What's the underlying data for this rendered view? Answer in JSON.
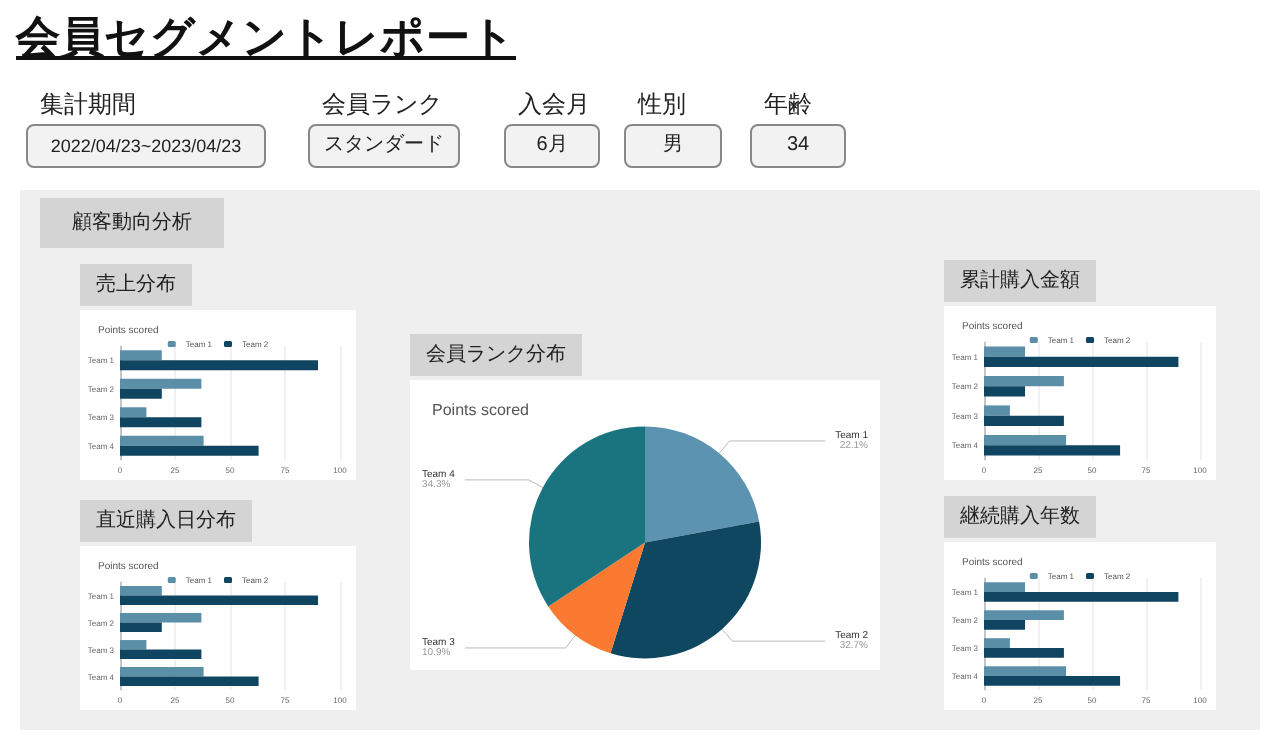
{
  "chart_data": [
    {
      "type": "other",
      "title": "会員セグメントレポート",
      "annotations": [
        "集計期間",
        "2022/04/23~2023/04/23",
        "会員ランク",
        "スタンダード",
        "入会月",
        "6月",
        "性別",
        "男",
        "年齢",
        "34",
        "顧客動向分析"
      ]
    },
    {
      "type": "bar",
      "orientation": "horizontal",
      "title": "売上分布",
      "subtitle": "Points scored",
      "categories": [
        "Team 1",
        "Team 2",
        "Team 3",
        "Team 4"
      ],
      "series": [
        {
          "name": "Team 1",
          "color": "#5b8fa8",
          "values": [
            19,
            37,
            12,
            38
          ]
        },
        {
          "name": "Team 2",
          "color": "#0f4561",
          "values": [
            90,
            19,
            37,
            63
          ]
        }
      ],
      "xlim": [
        0,
        100
      ],
      "xticks": [
        0,
        25,
        50,
        75,
        100
      ],
      "grid": "x",
      "legend": "top"
    },
    {
      "type": "bar",
      "orientation": "horizontal",
      "title": "累計購入金額",
      "subtitle": "Points scored",
      "categories": [
        "Team 1",
        "Team 2",
        "Team 3",
        "Team 4"
      ],
      "series": [
        {
          "name": "Team 1",
          "color": "#5b8fa8",
          "values": [
            19,
            37,
            12,
            38
          ]
        },
        {
          "name": "Team 2",
          "color": "#0f4561",
          "values": [
            90,
            19,
            37,
            63
          ]
        }
      ],
      "xlim": [
        0,
        100
      ],
      "xticks": [
        0,
        25,
        50,
        75,
        100
      ],
      "grid": "x",
      "legend": "top"
    },
    {
      "type": "pie",
      "title": "会員ランク分布",
      "subtitle": "Points scored",
      "categories": [
        "Team 1",
        "Team 2",
        "Team 3",
        "Team 4"
      ],
      "values": [
        22.1,
        32.7,
        10.9,
        34.3
      ],
      "value_labels": [
        "22.1%",
        "32.7%",
        "10.9%",
        "34.3%"
      ],
      "colors": [
        "#5b93b0",
        "#0f4761",
        "#f97a30",
        "#1a7480"
      ]
    },
    {
      "type": "bar",
      "orientation": "horizontal",
      "title": "直近購入日分布",
      "subtitle": "Points scored",
      "categories": [
        "Team 1",
        "Team 2",
        "Team 3",
        "Team 4"
      ],
      "series": [
        {
          "name": "Team 1",
          "color": "#5b8fa8",
          "values": [
            19,
            37,
            12,
            38
          ]
        },
        {
          "name": "Team 2",
          "color": "#0f4561",
          "values": [
            90,
            19,
            37,
            63
          ]
        }
      ],
      "xlim": [
        0,
        100
      ],
      "xticks": [
        0,
        25,
        50,
        75,
        100
      ],
      "grid": "x",
      "legend": "top"
    },
    {
      "type": "bar",
      "orientation": "horizontal",
      "title": "継続購入年数",
      "subtitle": "Points scored",
      "categories": [
        "Team 1",
        "Team 2",
        "Team 3",
        "Team 4"
      ],
      "series": [
        {
          "name": "Team 1",
          "color": "#5b8fa8",
          "values": [
            19,
            37,
            12,
            38
          ]
        },
        {
          "name": "Team 2",
          "color": "#0f4561",
          "values": [
            90,
            19,
            37,
            63
          ]
        }
      ],
      "xlim": [
        0,
        100
      ],
      "xticks": [
        0,
        25,
        50,
        75,
        100
      ],
      "grid": "x",
      "legend": "top"
    }
  ]
}
